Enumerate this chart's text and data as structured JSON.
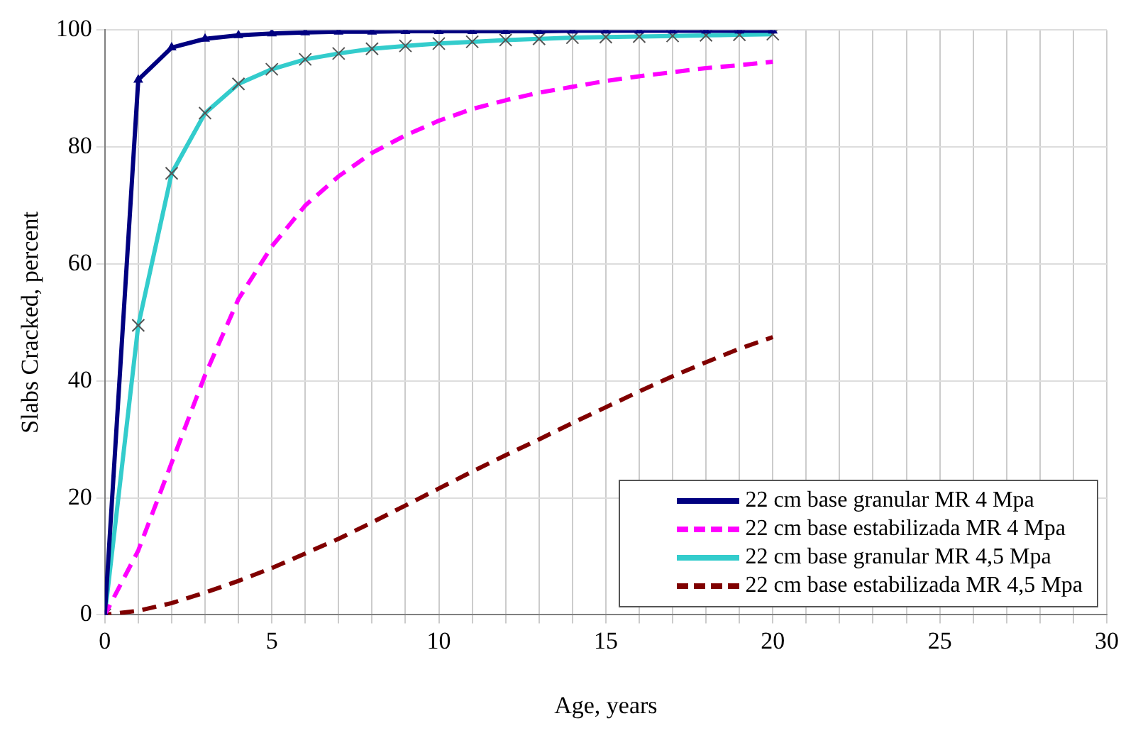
{
  "chart_data": {
    "type": "line",
    "xlabel": "Age, years",
    "ylabel": "Slabs Cracked, percent",
    "x": [
      0,
      1,
      2,
      3,
      4,
      5,
      6,
      7,
      8,
      9,
      10,
      11,
      12,
      13,
      14,
      15,
      16,
      17,
      18,
      19,
      20
    ],
    "series": [
      {
        "name": "22 cm base granular MR 4 Mpa",
        "color": "#000080",
        "marker": "triangle",
        "line_style": "solid",
        "values": [
          0,
          91.5,
          97,
          98.5,
          99.1,
          99.4,
          99.6,
          99.7,
          99.7,
          99.8,
          99.8,
          99.8,
          99.8,
          99.8,
          99.9,
          99.9,
          99.9,
          99.9,
          99.9,
          99.9,
          99.9
        ]
      },
      {
        "name": "22 cm base estabilizada MR 4 Mpa",
        "color": "#ff00ff",
        "marker": "none",
        "line_style": "dashed",
        "values": [
          0,
          11,
          26,
          41,
          54,
          63,
          70,
          75,
          79,
          82,
          84.5,
          86.5,
          88,
          89.3,
          90.3,
          91.3,
          92.1,
          92.8,
          93.5,
          94,
          94.6
        ]
      },
      {
        "name": "22 cm base granular MR 4,5 Mpa",
        "color": "#33cccc",
        "marker": "cross",
        "line_style": "solid",
        "values": [
          0,
          49.5,
          75.5,
          85.8,
          90.8,
          93.3,
          95,
          96,
          96.8,
          97.3,
          97.7,
          98,
          98.3,
          98.5,
          98.7,
          98.8,
          98.9,
          99,
          99.1,
          99.2,
          99.3
        ]
      },
      {
        "name": "22 cm base estabilizada MR 4,5 Mpa",
        "color": "#800000",
        "marker": "none",
        "line_style": "dashed",
        "values": [
          0,
          0.7,
          2,
          3.8,
          5.8,
          8,
          10.5,
          13,
          15.8,
          18.7,
          21.6,
          24.5,
          27.3,
          30,
          32.8,
          35.5,
          38.2,
          40.8,
          43.2,
          45.5,
          47.5
        ]
      }
    ],
    "xlim": [
      0,
      30
    ],
    "xticks": [
      0,
      {
        "value": 1,
        "label": null
      },
      {
        "value": 2,
        "label": null
      },
      {
        "value": 3,
        "label": null
      },
      {
        "value": 4,
        "label": null
      },
      5,
      {
        "value": 6,
        "label": null
      },
      {
        "value": 7,
        "label": null
      },
      {
        "value": 8,
        "label": null
      },
      {
        "value": 9,
        "label": null
      },
      10,
      {
        "value": 11,
        "label": null
      },
      {
        "value": 12,
        "label": null
      },
      {
        "value": 13,
        "label": null
      },
      {
        "value": 14,
        "label": null
      },
      15,
      {
        "value": 16,
        "label": null
      },
      {
        "value": 17,
        "label": null
      },
      {
        "value": 18,
        "label": null
      },
      {
        "value": 19,
        "label": null
      },
      20,
      {
        "value": 21,
        "label": null
      },
      {
        "value": 22,
        "label": null
      },
      {
        "value": 23,
        "label": null
      },
      {
        "value": 24,
        "label": null
      },
      25,
      {
        "value": 26,
        "label": null
      },
      {
        "value": 27,
        "label": null
      },
      {
        "value": 28,
        "label": null
      },
      {
        "value": 29,
        "label": null
      },
      30
    ],
    "ylim": [
      0,
      100
    ],
    "yticks": [
      0,
      20,
      40,
      60,
      80,
      100
    ],
    "grid": true,
    "legend": "bottom right"
  }
}
